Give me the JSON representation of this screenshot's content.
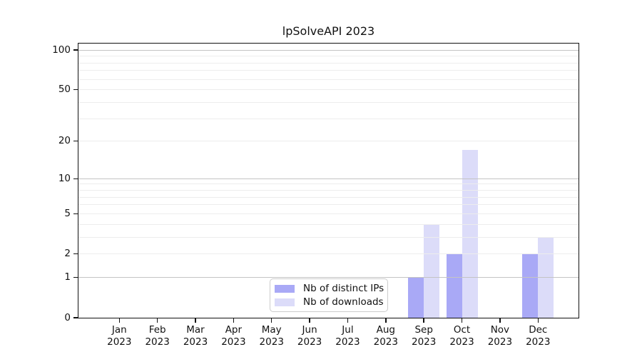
{
  "chart_data": {
    "type": "bar",
    "title": "lpSolveAPI 2023",
    "categories": [
      "Jan",
      "Feb",
      "Mar",
      "Apr",
      "May",
      "Jun",
      "Jul",
      "Aug",
      "Sep",
      "Oct",
      "Nov",
      "Dec"
    ],
    "category_year": "2023",
    "series": [
      {
        "name": "Nb of distinct IPs",
        "color": "#a9a9f6",
        "values": [
          0,
          0,
          0,
          0,
          0,
          0,
          0,
          0,
          1,
          2,
          0,
          2
        ]
      },
      {
        "name": "Nb of downloads",
        "color": "#dcdcf9",
        "values": [
          0,
          0,
          0,
          0,
          0,
          0,
          0,
          0,
          4,
          17,
          0,
          3
        ]
      }
    ],
    "y_scale": "log1p",
    "ylim": [
      0,
      112
    ],
    "y_ticks": [
      0,
      1,
      2,
      5,
      10,
      20,
      50,
      100
    ],
    "grid_minor": [
      2,
      3,
      4,
      5,
      6,
      7,
      8,
      9,
      20,
      30,
      40,
      50,
      60,
      70,
      80,
      90
    ],
    "grid_major": [
      1,
      10,
      100
    ],
    "legend_position": "inside-bottom-center",
    "colors": {
      "grid_minor": "#ededed",
      "grid_major": "#c4c4c4",
      "axis": "#111111"
    }
  }
}
